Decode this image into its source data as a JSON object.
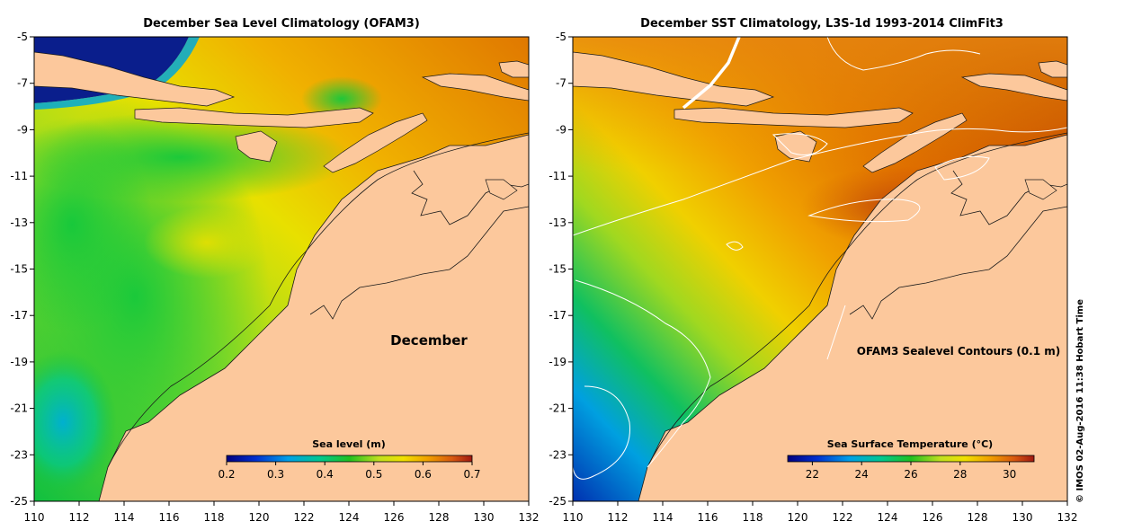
{
  "credit": "© IMOS 02-Aug-2016 11:38 Hobart Time",
  "axes": {
    "x_ticks": [
      "110",
      "112",
      "114",
      "116",
      "118",
      "120",
      "122",
      "124",
      "126",
      "128",
      "130",
      "132"
    ],
    "y_ticks": [
      "-5",
      "-7",
      "-9",
      "-11",
      "-13",
      "-15",
      "-17",
      "-19",
      "-21",
      "-23",
      "-25"
    ],
    "lon_range": [
      110,
      132
    ],
    "lat_range": [
      -25,
      -5
    ]
  },
  "panels": [
    {
      "title": "December Sea Level Climatology (OFAM3)",
      "annotation": "December",
      "colorbar": {
        "label": "Sea level (m)",
        "ticks": [
          "0.2",
          "0.3",
          "0.4",
          "0.5",
          "0.6",
          "0.7"
        ],
        "range": [
          0.2,
          0.7
        ]
      }
    },
    {
      "title": "December SST Climatology, L3S-1d 1993-2014 ClimFit3",
      "annotation": "OFAM3 Sealevel Contours (0.1 m)",
      "colorbar": {
        "label": "Sea Surface Temperature (°C)",
        "ticks": [
          "22",
          "24",
          "26",
          "28",
          "30"
        ],
        "range": [
          21,
          31
        ]
      }
    }
  ],
  "colors": {
    "land": "#fcc89c",
    "colormap": [
      "#000080",
      "#0040c0",
      "#00a0e0",
      "#00c8a0",
      "#10c030",
      "#60d020",
      "#c0e020",
      "#f0e000",
      "#f0b000",
      "#e88000",
      "#d05010",
      "#b02810",
      "#901010"
    ]
  }
}
